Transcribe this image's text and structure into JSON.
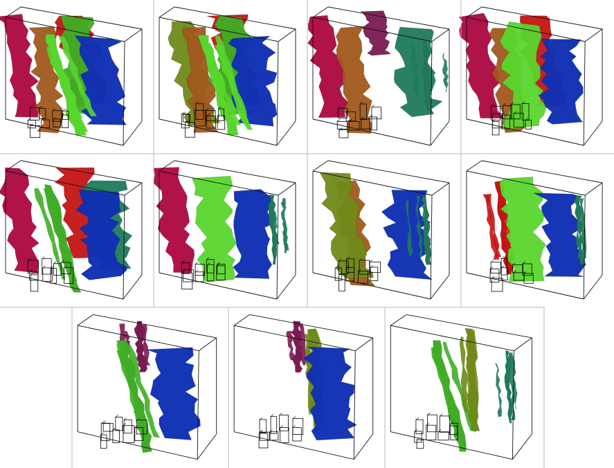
{
  "figure": {
    "background": "#ffffff",
    "divider_color": "#b8b8b8",
    "grid_rows": [
      4,
      4,
      3
    ],
    "panels": [
      {
        "id": "p1",
        "layers": [
          "crimson",
          "brown",
          "red",
          "green",
          "blue",
          "lime-streak"
        ]
      },
      {
        "id": "p2",
        "layers": [
          "olive",
          "brown",
          "red",
          "green",
          "blue",
          "lime-streak"
        ]
      },
      {
        "id": "p3",
        "layers": [
          "crimson",
          "brown",
          "purple",
          "teal",
          "teal-streak"
        ]
      },
      {
        "id": "p4",
        "layers": [
          "crimson",
          "brown",
          "red",
          "lime",
          "blue"
        ]
      },
      {
        "id": "p5",
        "layers": [
          "crimson",
          "red",
          "teal",
          "blue",
          "green-streak"
        ]
      },
      {
        "id": "p6",
        "layers": [
          "crimson",
          "lime",
          "blue",
          "teal-streak"
        ]
      },
      {
        "id": "p7",
        "layers": [
          "brown",
          "olive",
          "blue",
          "teal-streak"
        ]
      },
      {
        "id": "p8",
        "layers": [
          "red-streak",
          "lime",
          "blue",
          "teal-streak"
        ]
      },
      {
        "id": "p9",
        "layers": [
          "purple-streak",
          "green-streak",
          "blue"
        ]
      },
      {
        "id": "p10",
        "layers": [
          "purple-streak",
          "olive-streak",
          "blue"
        ]
      },
      {
        "id": "p11",
        "layers": [
          "green-streak",
          "olive-streak",
          "teal-streak"
        ]
      }
    ],
    "colors": {
      "crimson": "#b0124a",
      "red": "#c41414",
      "brown": "#a0581c",
      "olive": "#6f8a1a",
      "green": "#3fae26",
      "lime": "#58d62c",
      "teal": "#1f7a5a",
      "blue": "#1030b4",
      "purple": "#7a1a52",
      "box_line": "#111111",
      "building_line": "#000000"
    }
  }
}
